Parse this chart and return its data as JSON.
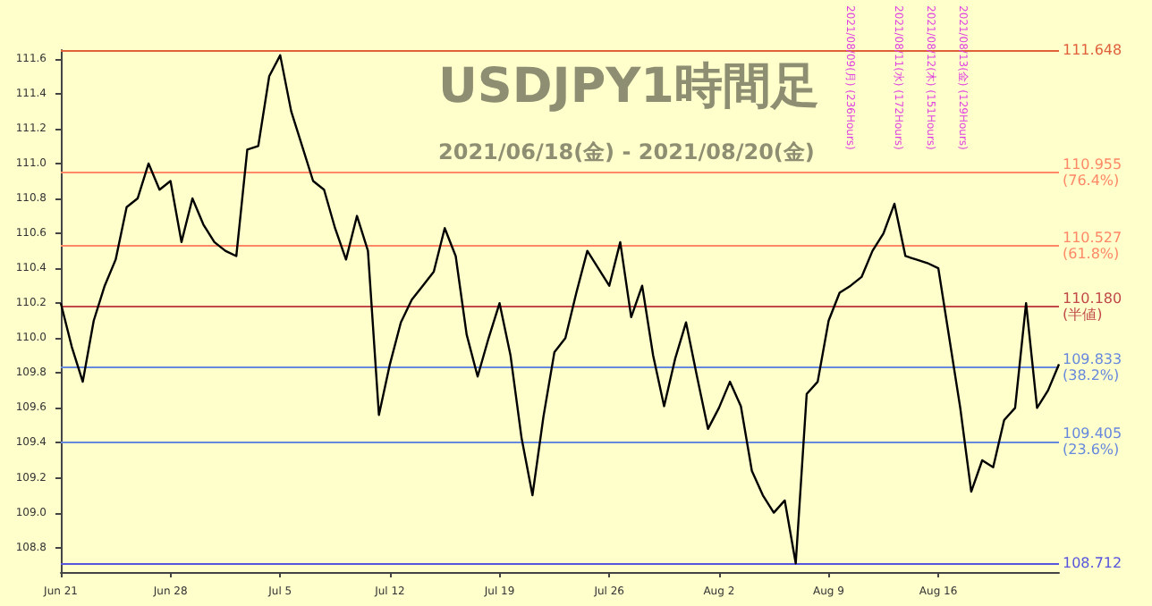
{
  "chart_data": {
    "type": "line",
    "title": "USDJPY1時間足",
    "subtitle": "2021/06/18(金) - 2021/08/20(金)",
    "annotations": [
      "2021/08/09(月) (236Hours)",
      "2021/08/11(水) (172Hours)",
      "2021/08/12(木) (151Hours)",
      "2021/08/13(金) (129Hours)"
    ],
    "categories": [
      "Jun 21",
      null,
      null,
      null,
      null,
      null,
      null,
      null,
      null,
      null,
      "Jun 28",
      null,
      null,
      null,
      null,
      null,
      null,
      null,
      null,
      null,
      "Jul 5",
      null,
      null,
      null,
      null,
      null,
      null,
      null,
      null,
      null,
      "Jul 12",
      null,
      null,
      null,
      null,
      null,
      null,
      null,
      null,
      null,
      "Jul 19",
      null,
      null,
      null,
      null,
      null,
      null,
      null,
      null,
      null,
      "Jul 26",
      null,
      null,
      null,
      null,
      null,
      null,
      null,
      null,
      null,
      "Aug 2",
      null,
      null,
      null,
      null,
      null,
      null,
      null,
      null,
      null,
      "Aug 9",
      null,
      null,
      null,
      null,
      null,
      null,
      null,
      null,
      null,
      "Aug 16",
      null,
      null,
      null,
      null,
      null,
      null,
      null,
      null,
      null,
      null,
      null
    ],
    "series": [
      {
        "color": "#000000",
        "values": [
          110.2,
          109.95,
          109.75,
          110.1,
          110.3,
          110.45,
          110.75,
          110.8,
          111.0,
          110.85,
          110.9,
          110.55,
          110.8,
          110.65,
          110.55,
          110.5,
          110.47,
          111.08,
          111.1,
          111.5,
          111.62,
          111.3,
          111.1,
          110.9,
          110.85,
          110.63,
          110.45,
          110.7,
          110.5,
          109.56,
          109.85,
          110.09,
          110.22,
          110.3,
          110.38,
          110.63,
          110.47,
          110.02,
          109.78,
          110.0,
          110.2,
          109.9,
          109.43,
          109.1,
          109.55,
          109.92,
          110.0,
          110.26,
          110.5,
          110.4,
          110.3,
          110.55,
          110.12,
          110.3,
          109.9,
          109.61,
          109.88,
          110.09,
          109.78,
          109.48,
          109.6,
          109.75,
          109.61,
          109.24,
          109.1,
          109.0,
          109.07,
          108.71,
          109.68,
          109.75,
          110.1,
          110.26,
          110.3,
          110.35,
          110.5,
          110.6,
          110.77,
          110.47,
          110.45,
          110.43,
          110.4,
          110.0,
          109.6,
          109.12,
          109.3,
          109.26,
          109.53,
          109.6,
          110.2,
          109.6,
          109.7,
          109.85
        ]
      }
    ],
    "ylim": [
      108.66,
      111.65
    ],
    "yticks": [
      108.8,
      {
        "value": 109.0,
        "label": "109.0"
      },
      109.2,
      109.4,
      109.6,
      109.8,
      {
        "value": 110.0,
        "label": "110.0"
      },
      110.2,
      110.4,
      110.6,
      110.8,
      {
        "value": 111.0,
        "label": "111.0"
      },
      111.2,
      111.4,
      111.6
    ],
    "ref_lines": [
      {
        "axis": "y",
        "value": 111.648,
        "label": "111.648",
        "color": "#e0603a"
      },
      {
        "axis": "y",
        "value": 110.955,
        "label": "110.955\n(76.4%)",
        "color": "#ff8866"
      },
      {
        "axis": "y",
        "value": 110.527,
        "label": "110.527\n(61.8%)",
        "color": "#ff8866"
      },
      {
        "axis": "y",
        "value": 110.18,
        "label": "110.180\n(半値)",
        "color": "#c04848"
      },
      {
        "axis": "y",
        "value": 109.833,
        "label": "109.833\n(38.2%)",
        "color": "#6688dd"
      },
      {
        "axis": "y",
        "value": 109.405,
        "label": "109.405\n(23.6%)",
        "color": "#6688dd"
      },
      {
        "axis": "y",
        "value": 108.712,
        "label": "108.712",
        "color": "#5555dd"
      }
    ],
    "grid": false,
    "marker": "none",
    "line_style": "solid"
  }
}
